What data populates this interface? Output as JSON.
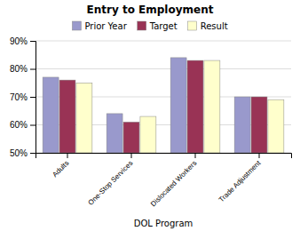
{
  "chart_data": {
    "type": "bar",
    "title": "Entry to Employment",
    "xlabel": "DOL Program",
    "categories": [
      "Adults",
      "One-Stop Services",
      "Dislocated Workers",
      "Trade Adjustment"
    ],
    "series": [
      {
        "name": "Prior Year",
        "color": "#9999cc",
        "values": [
          77,
          64,
          84,
          70
        ]
      },
      {
        "name": "Target",
        "color": "#993355",
        "values": [
          76,
          61,
          83,
          70
        ]
      },
      {
        "name": "Result",
        "color": "#ffffcc",
        "values": [
          75,
          63,
          83,
          69
        ]
      }
    ],
    "ylim": [
      50,
      90
    ],
    "yticks": [
      {
        "value": 50,
        "label": "50%"
      },
      {
        "value": 60,
        "label": "60%"
      },
      {
        "value": 70,
        "label": "70%"
      },
      {
        "value": 80,
        "label": "80%"
      },
      {
        "value": 90,
        "label": "90%"
      }
    ],
    "grid": true,
    "legend": "top"
  }
}
